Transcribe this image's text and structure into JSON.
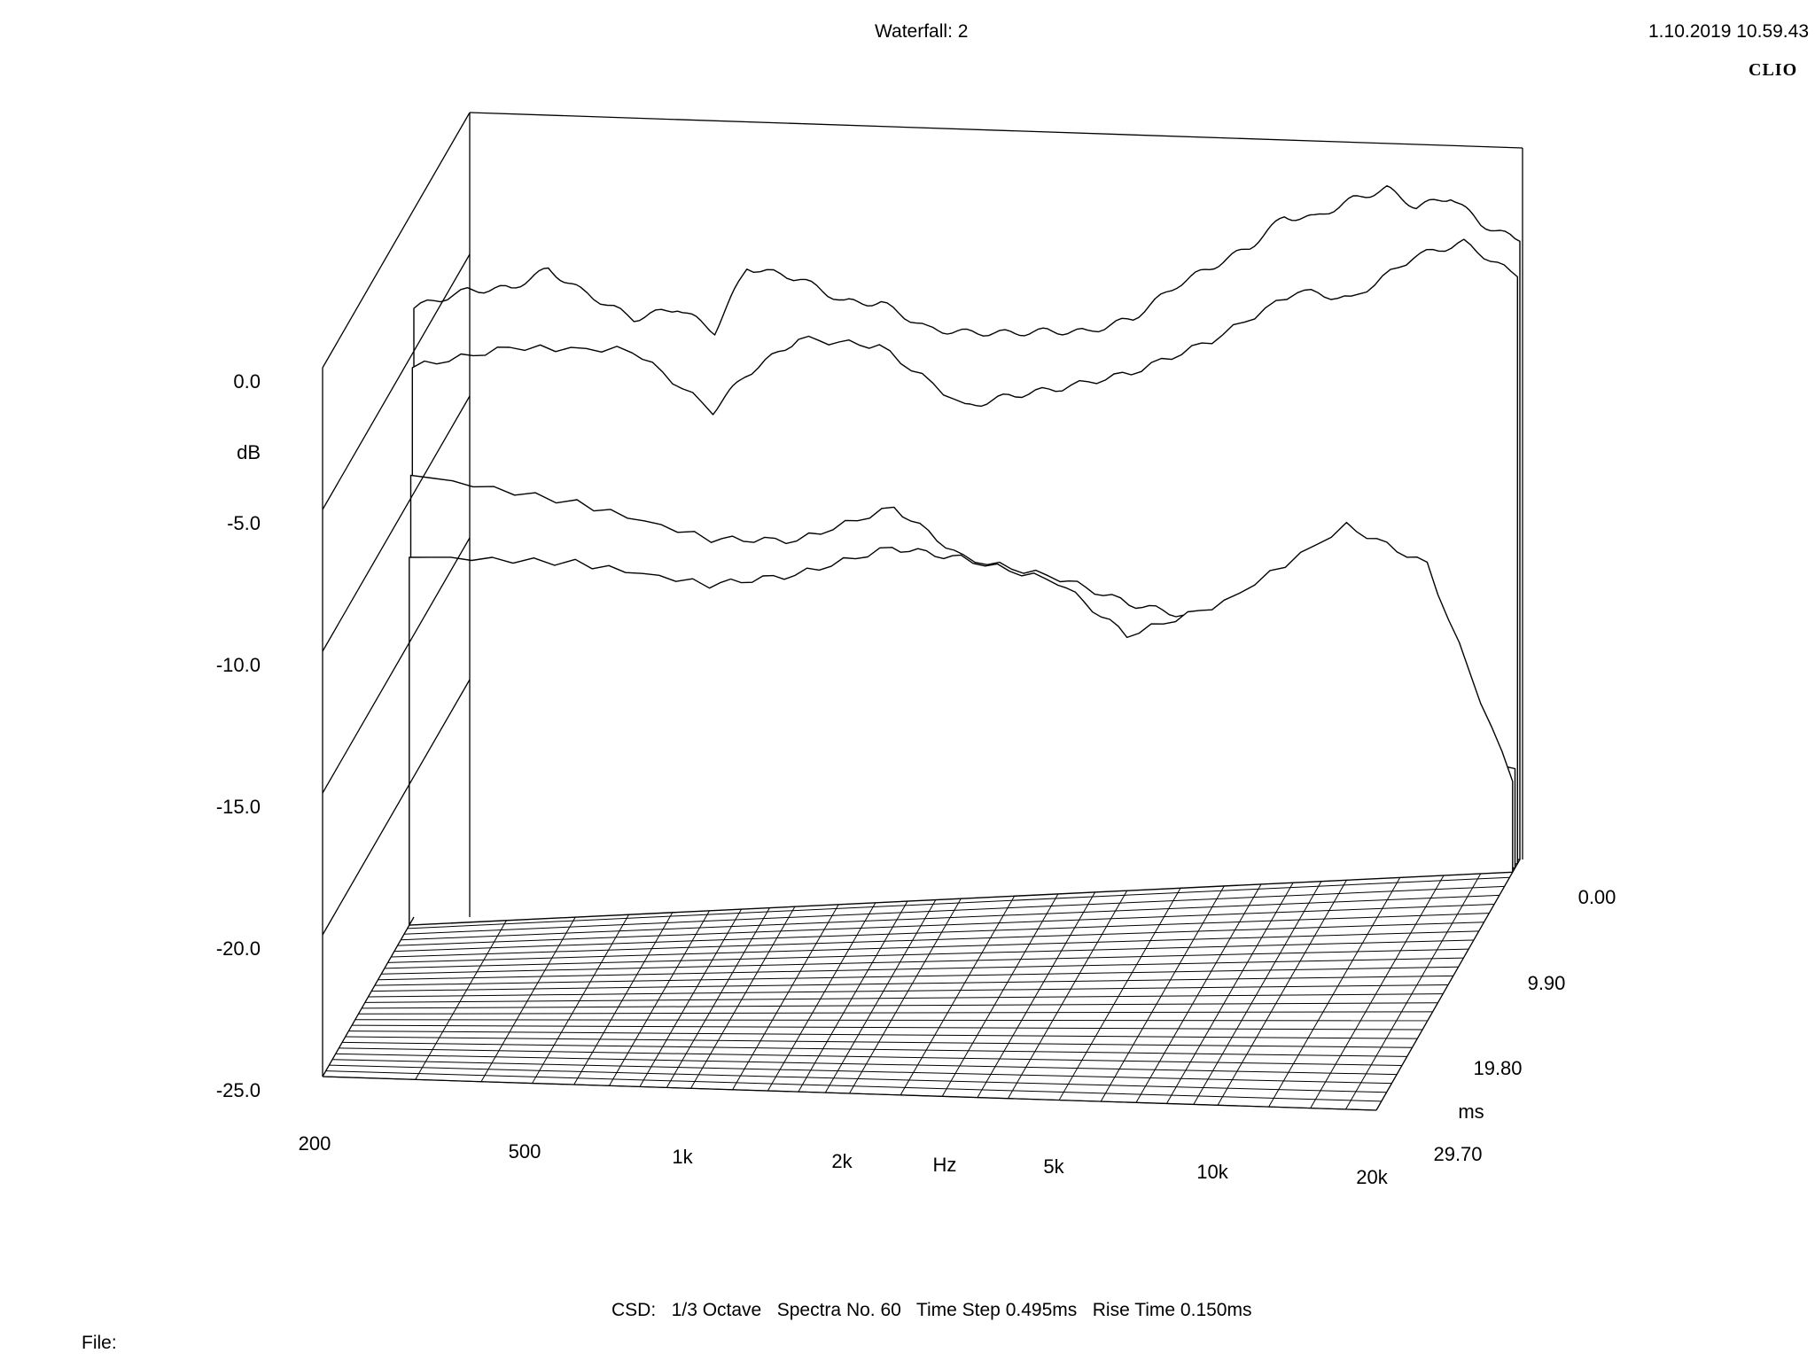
{
  "header": {
    "title": "Waterfall: 2",
    "timestamp": "1.10.2019 10.59.43",
    "brand": "CLIO"
  },
  "footer": {
    "info": "CSD:   1/3 Octave   Spectra No. 60   Time Step 0.495ms   Rise Time 0.150ms",
    "file_label": "File:"
  },
  "chart_data": {
    "type": "waterfall",
    "title": "Waterfall: 2",
    "y_axis": {
      "label": "dB",
      "ticks": [
        "0.0",
        "-5.0",
        "-10.0",
        "-15.0",
        "-20.0",
        "-25.0"
      ],
      "range": [
        -25,
        0
      ]
    },
    "x_axis": {
      "label": "Hz",
      "scale": "log",
      "ticks": [
        "200",
        "500",
        "1k",
        "2k",
        "5k",
        "10k",
        "20k"
      ],
      "range": [
        200,
        20000
      ]
    },
    "z_axis": {
      "label": "ms",
      "ticks": [
        "0.00",
        "9.90",
        "19.80",
        "29.70"
      ],
      "range": [
        0,
        29.7
      ]
    },
    "csd": {
      "smoothing": "1/3 Octave",
      "spectra_count": 60,
      "time_step_ms": 0.495,
      "rise_time_ms": 0.15
    },
    "series": [
      {
        "time_ms": 0.0,
        "freq_hz": [
          200,
          250,
          300,
          350,
          400,
          500,
          600,
          700,
          800,
          1000,
          1200,
          1400,
          1700,
          2000,
          2400,
          2800,
          3300,
          4000,
          4800,
          5600,
          6500,
          7500,
          8500,
          10000,
          11500,
          13000,
          15000,
          17000,
          20000
        ],
        "db": [
          -3.5,
          -3.0,
          -3.0,
          -2.4,
          -3.2,
          -4.3,
          -4.0,
          -4.9,
          -2.7,
          -3.2,
          -4.1,
          -4.2,
          -5.2,
          -5.4,
          -5.5,
          -5.5,
          -5.6,
          -5.2,
          -4.1,
          -3.5,
          -2.9,
          -1.9,
          -2.0,
          -1.4,
          -1.1,
          -1.8,
          -1.5,
          -2.5,
          -3.2
        ]
      },
      {
        "time_ms": 0.5,
        "freq_hz": [
          200,
          300,
          500,
          700,
          800,
          1000,
          1400,
          2000,
          2400,
          3000,
          4000,
          5600,
          8000,
          10000,
          13000,
          16000,
          20000
        ],
        "db": [
          -5.5,
          -5.0,
          -5.3,
          -7.6,
          -6.4,
          -5.2,
          -5.6,
          -7.9,
          -7.6,
          -7.4,
          -7.0,
          -6.0,
          -4.4,
          -4.8,
          -3.4,
          -3.0,
          -4.3
        ]
      },
      {
        "time_ms": 1.0,
        "freq_hz": [
          200,
          400,
          700,
          1000,
          1500,
          2000,
          3000,
          4000,
          5000,
          7000,
          10000,
          14000,
          20000
        ],
        "db": [
          -9.2,
          -10.5,
          -12.0,
          -12.2,
          -11.2,
          -13.1,
          -14.0,
          -15.0,
          -15.5,
          -16.7,
          -18.3,
          -21.5,
          -21.5
        ]
      },
      {
        "time_ms": 1.5,
        "freq_hz": [
          200,
          400,
          700,
          1000,
          1500,
          2000,
          3000,
          4000,
          6000,
          10000,
          14000,
          20000
        ],
        "db": [
          -12.0,
          -12.5,
          -13.5,
          -13.3,
          -12.5,
          -13.0,
          -14.0,
          -16.0,
          -15.0,
          -12.5,
          -14.0,
          -21.8
        ]
      }
    ]
  }
}
